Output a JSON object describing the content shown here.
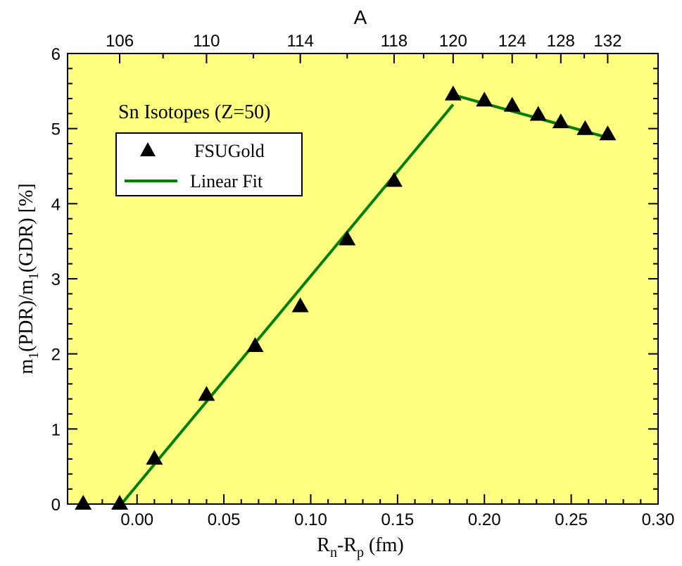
{
  "chart_data": {
    "type": "scatter",
    "xlabel": {
      "main": "R",
      "sub1": "n",
      "mid": "-R",
      "sub2": "p",
      "tail": " (fm)"
    },
    "ylabel": {
      "p1": "m",
      "s1": "1",
      "p2": "(PDR)/m",
      "s2": "1",
      "p3": "(GDR) [%]"
    },
    "top_axis_title": "A",
    "annotation": "Sn Isotopes (Z=50)",
    "xlim": [
      -0.04,
      0.3
    ],
    "ylim": [
      0,
      6
    ],
    "x_ticks": [
      0.0,
      0.05,
      0.1,
      0.15,
      0.2,
      0.25,
      0.3
    ],
    "x_tick_labels": [
      "0.00",
      "0.05",
      "0.10",
      "0.15",
      "0.20",
      "0.25",
      "0.30"
    ],
    "y_ticks": [
      0,
      1,
      2,
      3,
      4,
      5,
      6
    ],
    "y_tick_labels": [
      "0",
      "1",
      "2",
      "3",
      "4",
      "5",
      "6"
    ],
    "top_ticks": [
      {
        "label": "106",
        "x": -0.01
      },
      {
        "label": "110",
        "x": 0.04
      },
      {
        "label": "114",
        "x": 0.094
      },
      {
        "label": "118",
        "x": 0.148
      },
      {
        "label": "120",
        "x": 0.182
      },
      {
        "label": "124",
        "x": 0.216
      },
      {
        "label": "128",
        "x": 0.244
      },
      {
        "label": "132",
        "x": 0.271
      }
    ],
    "grid": false,
    "background_color": "#ffff80",
    "legend_placement": "upper-left",
    "series": [
      {
        "name": "FSUGold",
        "kind": "marker",
        "marker": "triangle",
        "color": "#000000",
        "points": [
          {
            "x": -0.031,
            "y": 0.0
          },
          {
            "x": -0.01,
            "y": 0.0
          },
          {
            "x": 0.01,
            "y": 0.6
          },
          {
            "x": 0.04,
            "y": 1.45
          },
          {
            "x": 0.068,
            "y": 2.1
          },
          {
            "x": 0.094,
            "y": 2.63
          },
          {
            "x": 0.121,
            "y": 3.52
          },
          {
            "x": 0.148,
            "y": 4.3
          },
          {
            "x": 0.182,
            "y": 5.45
          },
          {
            "x": 0.2,
            "y": 5.37
          },
          {
            "x": 0.216,
            "y": 5.3
          },
          {
            "x": 0.231,
            "y": 5.18
          },
          {
            "x": 0.244,
            "y": 5.08
          },
          {
            "x": 0.258,
            "y": 4.99
          },
          {
            "x": 0.271,
            "y": 4.92
          }
        ]
      },
      {
        "name": "Linear Fit",
        "kind": "lines",
        "color": "#008000",
        "segments": [
          [
            {
              "x": -0.009,
              "y": 0.0
            },
            {
              "x": 0.182,
              "y": 5.32
            }
          ],
          [
            {
              "x": 0.182,
              "y": 5.45
            },
            {
              "x": 0.271,
              "y": 4.88
            }
          ]
        ]
      }
    ]
  }
}
